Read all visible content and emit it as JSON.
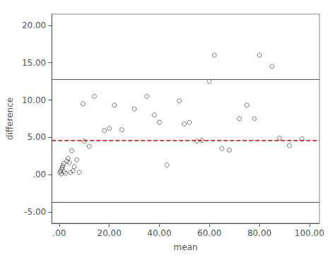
{
  "chart_data": {
    "type": "scatter",
    "x": [
      0.3,
      0.5,
      0.8,
      1.0,
      1.2,
      1.5,
      1.8,
      2.0,
      2.5,
      3.0,
      3.5,
      4.0,
      4.5,
      5.0,
      5.5,
      6.0,
      7.0,
      8.0,
      9.5,
      10.0,
      12.0,
      14.0,
      18.0,
      20.0,
      22.0,
      25.0,
      30.0,
      35.0,
      38.0,
      40.0,
      43.0,
      48.0,
      50.0,
      52.0,
      55.0,
      57.0,
      60.0,
      62.0,
      65.0,
      68.0,
      72.0,
      75.0,
      78.0,
      80.0,
      85.0,
      88.0,
      92.0,
      97.0
    ],
    "values": [
      0.3,
      0.5,
      0.1,
      0.8,
      1.0,
      1.2,
      1.5,
      0.4,
      0.2,
      1.8,
      2.2,
      1.6,
      0.3,
      3.2,
      0.5,
      1.1,
      2.0,
      0.3,
      9.5,
      4.5,
      3.8,
      10.5,
      5.9,
      6.2,
      9.3,
      6.0,
      8.8,
      10.5,
      8.0,
      7.0,
      1.3,
      9.9,
      6.8,
      7.0,
      4.5,
      4.6,
      12.5,
      16.0,
      3.5,
      3.3,
      7.5,
      9.3,
      7.5,
      16.0,
      14.5,
      4.9,
      3.9,
      4.8
    ],
    "color": "#555555",
    "marker": "circle",
    "hlines": [
      {
        "y": 12.75,
        "color": "#555555",
        "line_style": "solid"
      },
      {
        "y": -3.65,
        "color": "#555555",
        "line_style": "solid"
      },
      {
        "y": 4.55,
        "color": "#cc0000",
        "line_style": "dashed"
      }
    ],
    "xlabel": "mean",
    "ylabel": "difference",
    "xlim": [
      -3,
      104
    ],
    "ylim": [
      -6.5,
      21.5
    ],
    "xticks": [
      {
        "value": 0,
        "label": ".00"
      },
      {
        "value": 20,
        "label": "20.00"
      },
      {
        "value": 40,
        "label": "40.00"
      },
      {
        "value": 60,
        "label": "60.00"
      },
      {
        "value": 80,
        "label": "80.00"
      },
      {
        "value": 100,
        "label": "100.00"
      }
    ],
    "yticks": [
      {
        "value": -5,
        "label": "-5.00"
      },
      {
        "value": 0,
        "label": ".00"
      },
      {
        "value": 5,
        "label": "5.00"
      },
      {
        "value": 10,
        "label": "10.00"
      },
      {
        "value": 15,
        "label": "15.00"
      },
      {
        "value": 20,
        "label": "20.00"
      }
    ],
    "grid": false
  }
}
